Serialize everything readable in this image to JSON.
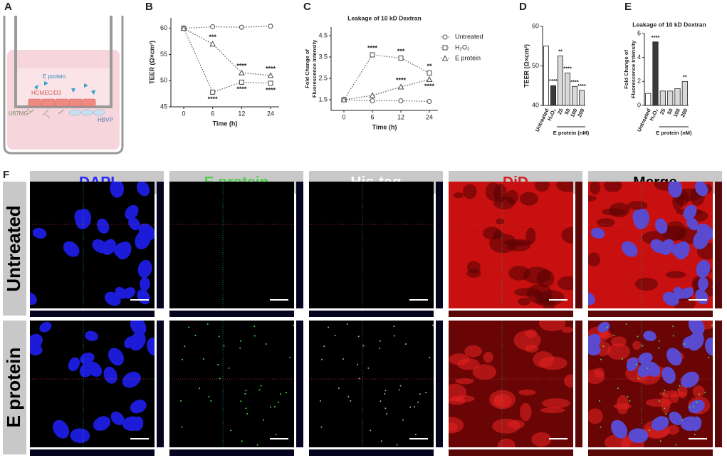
{
  "panel_labels": [
    "A",
    "B",
    "C",
    "D",
    "E",
    "F"
  ],
  "diagram": {
    "labels": [
      "E protein",
      "HCMEC/D3",
      "U87MG",
      "HBVP"
    ]
  },
  "chart_data": [
    {
      "type": "line",
      "ylabel": "TEER (Ω×cm²)",
      "xlabel": "Time (h)",
      "categories": [
        "0",
        "6",
        "12",
        "24"
      ],
      "ylim": [
        45,
        62
      ],
      "yticks": [
        45,
        50,
        55,
        60
      ],
      "series": [
        {
          "marker": "circle",
          "color": "#555555",
          "values": [
            60,
            60.3,
            60.2,
            60.4
          ]
        },
        {
          "marker": "square",
          "color": "#555555",
          "values": [
            60,
            47.8,
            49.7,
            49.5
          ]
        },
        {
          "marker": "triangle",
          "color": "#555555",
          "values": [
            60,
            57,
            51.5,
            51
          ]
        }
      ],
      "annotations": [
        {
          "series": 2,
          "index": 1,
          "text": "***",
          "side": "above"
        },
        {
          "series": 1,
          "index": 1,
          "text": "****",
          "side": "below"
        },
        {
          "series": 2,
          "index": 2,
          "text": "****",
          "side": "above"
        },
        {
          "series": 1,
          "index": 2,
          "text": "****",
          "side": "below"
        },
        {
          "series": 2,
          "index": 3,
          "text": "****",
          "side": "above"
        },
        {
          "series": 1,
          "index": 3,
          "text": "****",
          "side": "below"
        }
      ]
    },
    {
      "type": "line",
      "title": "Leakage of 10 kD Dextran",
      "ylabel": [
        "Fold  Change of",
        "Fluorescence Intensity"
      ],
      "xlabel": "Time (h)",
      "categories": [
        "0",
        "6",
        "12",
        "24"
      ],
      "ylim": [
        1,
        4.9
      ],
      "yticks": [
        1.5,
        2.5,
        3.5,
        4.5
      ],
      "legend": "right",
      "series": [
        {
          "name": "Untreated",
          "marker": "circle",
          "color": "#555555",
          "values": [
            1.5,
            1.45,
            1.45,
            1.42
          ]
        },
        {
          "name": "H₂O₂",
          "marker": "square",
          "color": "#555555",
          "values": [
            1.5,
            3.6,
            3.45,
            2.75
          ]
        },
        {
          "name": "E protein",
          "marker": "triangle",
          "color": "#555555",
          "values": [
            1.5,
            1.7,
            2.1,
            2.45
          ]
        }
      ],
      "annotations": [
        {
          "series": 1,
          "index": 1,
          "text": "****",
          "side": "above"
        },
        {
          "series": 1,
          "index": 2,
          "text": "***",
          "side": "above"
        },
        {
          "series": 2,
          "index": 2,
          "text": "****",
          "side": "above"
        },
        {
          "series": 1,
          "index": 3,
          "text": "**",
          "side": "above"
        },
        {
          "series": 2,
          "index": 3,
          "text": "****",
          "side": "below"
        }
      ]
    },
    {
      "type": "bar",
      "ylabel": "TEER (Ω×cm²)",
      "group_label": "E protein (nM)",
      "categories": [
        "Untreated",
        "H₂O₂",
        "25",
        "50",
        "100",
        "200"
      ],
      "values": [
        55,
        45,
        52.5,
        48.2,
        44.8,
        43.8
      ],
      "colors": [
        "#ffffff",
        "#3a3a3a",
        "#d9d9d9",
        "#d9d9d9",
        "#d9d9d9",
        "#d9d9d9"
      ],
      "significance": [
        null,
        "****",
        "**",
        "****",
        "****",
        "****"
      ],
      "ylim": [
        40,
        60
      ],
      "yticks": [
        40,
        50,
        60
      ]
    },
    {
      "type": "bar",
      "title": "Leakage of 10 kD Dextran",
      "ylabel": [
        "Fold  Change of",
        "Fluorescence Intensity"
      ],
      "group_label": "E protein (nM)",
      "categories": [
        "Untreated",
        "H₂O₂",
        "25",
        "50",
        "100",
        "200"
      ],
      "values": [
        1,
        5.3,
        1.2,
        1.2,
        1.4,
        2.0
      ],
      "colors": [
        "#ffffff",
        "#3a3a3a",
        "#d9d9d9",
        "#d9d9d9",
        "#d9d9d9",
        "#d9d9d9"
      ],
      "significance": [
        null,
        "****",
        null,
        null,
        null,
        "**"
      ],
      "ylim": [
        0,
        6
      ],
      "yticks": [
        0,
        2,
        4,
        6
      ]
    }
  ],
  "microscopy": {
    "columns": [
      "DAPI",
      "E protein",
      "His-tag",
      "DiD",
      "Merge"
    ],
    "rows": [
      "Untreated",
      "E protein"
    ]
  }
}
